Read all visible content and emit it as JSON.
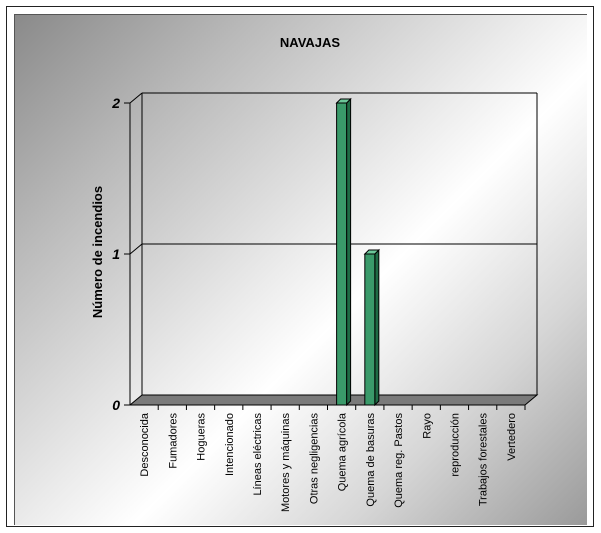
{
  "chart_data": {
    "type": "bar",
    "title": "NAVAJAS",
    "xlabel": "",
    "ylabel": "Número de incendios",
    "ylim": [
      0,
      2
    ],
    "yticks": [
      "0",
      "1",
      "2"
    ],
    "grid": true,
    "legend": "none",
    "categories": [
      "Desconocida",
      "Fumadores",
      "Hogueras",
      "Intencionado",
      "Líneas eléctricas",
      "Motores y máquinas",
      "Otras negligencias",
      "Quema agrícola",
      "Quema de basuras",
      "Quema reg. Pastos",
      "Rayo",
      "reproducción",
      "Trabajos forestales",
      "Vertedero"
    ],
    "values": [
      0,
      0,
      0,
      0,
      0,
      0,
      0,
      2,
      1,
      0,
      0,
      0,
      0,
      0
    ],
    "colors": {
      "bar": "#3a9a6a",
      "bar_side": "#1f6b45",
      "bar_top": "#6cc79a",
      "floor": "#7a7a7a"
    }
  }
}
